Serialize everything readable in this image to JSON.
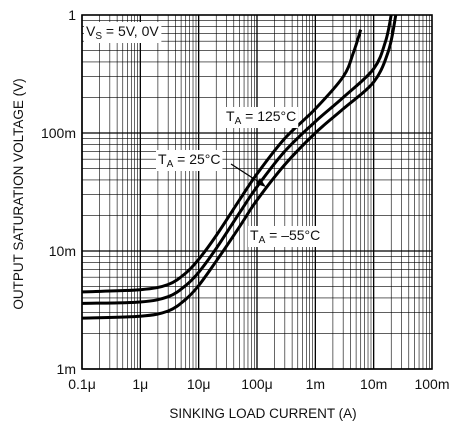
{
  "chart_data": {
    "type": "line",
    "title": "",
    "xlabel": "SINKING LOAD CURRENT (A)",
    "ylabel": "OUTPUT SATURATION VOLTAGE (V)",
    "x_scale": "log",
    "y_scale": "log",
    "xlim": [
      1e-07,
      0.1
    ],
    "ylim": [
      0.001,
      1
    ],
    "grid": true,
    "x_ticks": [
      {
        "value": 1e-07,
        "label": "0.1μ"
      },
      {
        "value": 1e-06,
        "label": "1μ"
      },
      {
        "value": 1e-05,
        "label": "10μ"
      },
      {
        "value": 0.0001,
        "label": "100μ"
      },
      {
        "value": 0.001,
        "label": "1m"
      },
      {
        "value": 0.01,
        "label": "10m"
      },
      {
        "value": 0.1,
        "label": "100m"
      }
    ],
    "y_ticks": [
      {
        "value": 0.001,
        "label": "1m"
      },
      {
        "value": 0.01,
        "label": "10m"
      },
      {
        "value": 0.1,
        "label": "100m"
      },
      {
        "value": 1,
        "label": "1"
      }
    ],
    "annotations": {
      "supply": {
        "main": "V",
        "sub": "S",
        "rest": " = 5V, 0V"
      },
      "t125": {
        "main": "T",
        "sub": "A",
        "rest": " = 125°C"
      },
      "t25": {
        "main": "T",
        "sub": "A",
        "rest": " = 25°C"
      },
      "tm55": {
        "main": "T",
        "sub": "A",
        "rest": " = –55°C"
      }
    },
    "series": [
      {
        "label_ref": "t125",
        "points": [
          [
            1e-07,
            0.0045
          ],
          [
            1e-06,
            0.0047
          ],
          [
            3e-06,
            0.0052
          ],
          [
            6e-06,
            0.0065
          ],
          [
            1e-05,
            0.0085
          ],
          [
            2e-05,
            0.0135
          ],
          [
            5e-05,
            0.027
          ],
          [
            0.0001,
            0.045
          ],
          [
            0.0003,
            0.09
          ],
          [
            0.001,
            0.16
          ],
          [
            0.003,
            0.3
          ],
          [
            0.0045,
            0.48
          ],
          [
            0.006,
            0.75
          ]
        ]
      },
      {
        "label_ref": "t25",
        "points": [
          [
            1e-07,
            0.0036
          ],
          [
            1e-06,
            0.0037
          ],
          [
            3e-06,
            0.0041
          ],
          [
            6e-06,
            0.0051
          ],
          [
            1e-05,
            0.0066
          ],
          [
            2e-05,
            0.0105
          ],
          [
            5e-05,
            0.021
          ],
          [
            0.0001,
            0.035
          ],
          [
            0.0003,
            0.07
          ],
          [
            0.001,
            0.125
          ],
          [
            0.003,
            0.2
          ],
          [
            0.01,
            0.35
          ],
          [
            0.016,
            0.6
          ],
          [
            0.02,
            1.0
          ]
        ]
      },
      {
        "label_ref": "tm55",
        "points": [
          [
            1e-07,
            0.0027
          ],
          [
            1e-06,
            0.0028
          ],
          [
            3e-06,
            0.0031
          ],
          [
            6e-06,
            0.0039
          ],
          [
            1e-05,
            0.0051
          ],
          [
            2e-05,
            0.0082
          ],
          [
            5e-05,
            0.016
          ],
          [
            0.0001,
            0.027
          ],
          [
            0.0003,
            0.054
          ],
          [
            0.001,
            0.1
          ],
          [
            0.003,
            0.16
          ],
          [
            0.01,
            0.27
          ],
          [
            0.018,
            0.5
          ],
          [
            0.024,
            1.0
          ]
        ]
      }
    ]
  }
}
